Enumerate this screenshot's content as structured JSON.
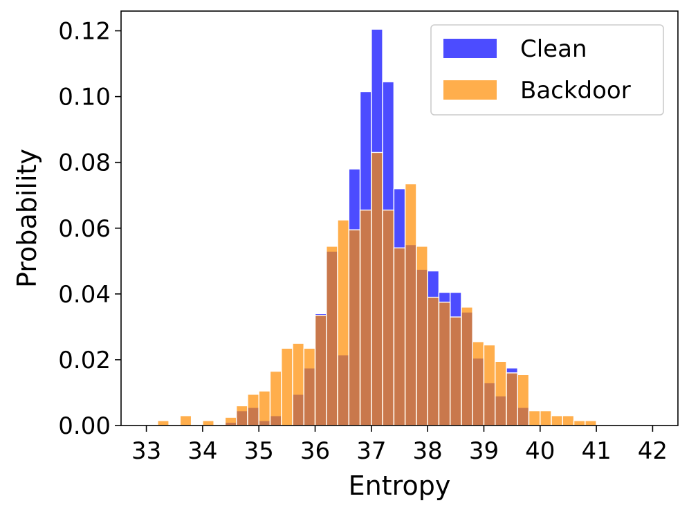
{
  "chart_data": {
    "type": "bar",
    "subtype": "overlapping-histogram",
    "title": "",
    "xlabel": "Entropy",
    "ylabel": "Probability",
    "xlim": [
      32.55,
      42.45
    ],
    "ylim": [
      0,
      0.126
    ],
    "xticks": [
      33,
      34,
      35,
      36,
      37,
      38,
      39,
      40,
      41,
      42
    ],
    "yticks": [
      0.0,
      0.02,
      0.04,
      0.06,
      0.08,
      0.1,
      0.12
    ],
    "ytick_labels": [
      "0.00",
      "0.02",
      "0.04",
      "0.06",
      "0.08",
      "0.10",
      "0.12"
    ],
    "grid": false,
    "legend": {
      "position": "top-right"
    },
    "bin_width": 0.2,
    "series": [
      {
        "name": "Clean",
        "color": "#0000ff",
        "opacity": 0.7,
        "bins": [
          [
            34.4,
            0.001
          ],
          [
            34.6,
            0.0045
          ],
          [
            34.8,
            0.0055
          ],
          [
            35.0,
            0.0015
          ],
          [
            35.2,
            0.003
          ],
          [
            35.6,
            0.0095
          ],
          [
            35.8,
            0.0175
          ],
          [
            36.0,
            0.034
          ],
          [
            36.2,
            0.053
          ],
          [
            36.4,
            0.0215
          ],
          [
            36.6,
            0.078
          ],
          [
            36.8,
            0.1015
          ],
          [
            37.0,
            0.1205
          ],
          [
            37.2,
            0.1045
          ],
          [
            37.4,
            0.072
          ],
          [
            37.6,
            0.055
          ],
          [
            37.8,
            0.0475
          ],
          [
            38.0,
            0.047
          ],
          [
            38.2,
            0.0405
          ],
          [
            38.4,
            0.0405
          ],
          [
            38.6,
            0.0345
          ],
          [
            38.8,
            0.0205
          ],
          [
            39.0,
            0.013
          ],
          [
            39.2,
            0.009
          ],
          [
            39.4,
            0.0175
          ],
          [
            39.6,
            0.0055
          ]
        ]
      },
      {
        "name": "Backdoor",
        "color": "#ff8c00",
        "opacity": 0.7,
        "bins": [
          [
            33.2,
            0.0015
          ],
          [
            33.6,
            0.003
          ],
          [
            34.0,
            0.0015
          ],
          [
            34.4,
            0.0025
          ],
          [
            34.6,
            0.006
          ],
          [
            34.8,
            0.0095
          ],
          [
            35.0,
            0.0105
          ],
          [
            35.2,
            0.0165
          ],
          [
            35.4,
            0.0235
          ],
          [
            35.6,
            0.025
          ],
          [
            35.8,
            0.0235
          ],
          [
            36.0,
            0.0335
          ],
          [
            36.2,
            0.0545
          ],
          [
            36.4,
            0.0625
          ],
          [
            36.6,
            0.0595
          ],
          [
            36.8,
            0.0655
          ],
          [
            37.0,
            0.083
          ],
          [
            37.2,
            0.0655
          ],
          [
            37.4,
            0.054
          ],
          [
            37.6,
            0.0735
          ],
          [
            37.8,
            0.0545
          ],
          [
            38.0,
            0.039
          ],
          [
            38.2,
            0.0375
          ],
          [
            38.4,
            0.033
          ],
          [
            38.6,
            0.036
          ],
          [
            38.8,
            0.0255
          ],
          [
            39.0,
            0.0245
          ],
          [
            39.2,
            0.0195
          ],
          [
            39.4,
            0.016
          ],
          [
            39.6,
            0.0155
          ],
          [
            39.8,
            0.0045
          ],
          [
            40.0,
            0.0045
          ],
          [
            40.2,
            0.003
          ],
          [
            40.4,
            0.003
          ],
          [
            40.6,
            0.0015
          ],
          [
            40.8,
            0.0015
          ]
        ]
      }
    ]
  }
}
